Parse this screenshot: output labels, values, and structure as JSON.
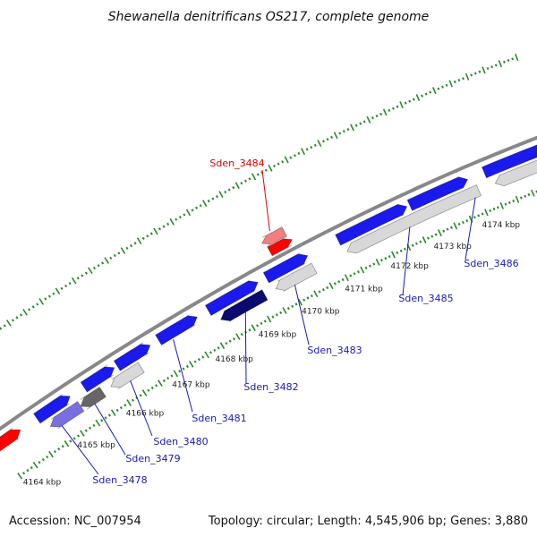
{
  "title": "Shewanella denitrificans OS217, complete genome",
  "footer": {
    "accession": "Accession: NC_007954",
    "topology": "Topology: circular; Length: 4,545,906 bp; Genes: 3,880"
  },
  "colors": {
    "backbone": "#888888",
    "tick_dots": "#2a8a2a",
    "tick_major": "#2a8a2a",
    "forward_gene": "#1a1aee",
    "reverse_gene": "#d8d8d8",
    "highlight_gene": "#ff0000",
    "dark_gene": "#0a0a70",
    "label_forward": "#1a1ab0",
    "label_reverse": "#dd0000"
  },
  "ticks": [
    {
      "label": "4164 kbp"
    },
    {
      "label": "4165 kbp"
    },
    {
      "label": "4166 kbp"
    },
    {
      "label": "4167 kbp"
    },
    {
      "label": "4168 kbp"
    },
    {
      "label": "4169 kbp"
    },
    {
      "label": "4170 kbp"
    },
    {
      "label": "4171 kbp"
    },
    {
      "label": "4172 kbp"
    },
    {
      "label": "4173 kbp"
    },
    {
      "label": "4174 kbp"
    }
  ],
  "gene_labels": [
    {
      "name": "Sden_3484",
      "strand": "reverse"
    },
    {
      "name": "Sden_3478",
      "strand": "forward"
    },
    {
      "name": "Sden_3479",
      "strand": "forward"
    },
    {
      "name": "Sden_3480",
      "strand": "forward"
    },
    {
      "name": "Sden_3481",
      "strand": "forward"
    },
    {
      "name": "Sden_3482",
      "strand": "forward"
    },
    {
      "name": "Sden_3483",
      "strand": "forward"
    },
    {
      "name": "Sden_3485",
      "strand": "forward"
    },
    {
      "name": "Sden_3486",
      "strand": "forward"
    }
  ]
}
